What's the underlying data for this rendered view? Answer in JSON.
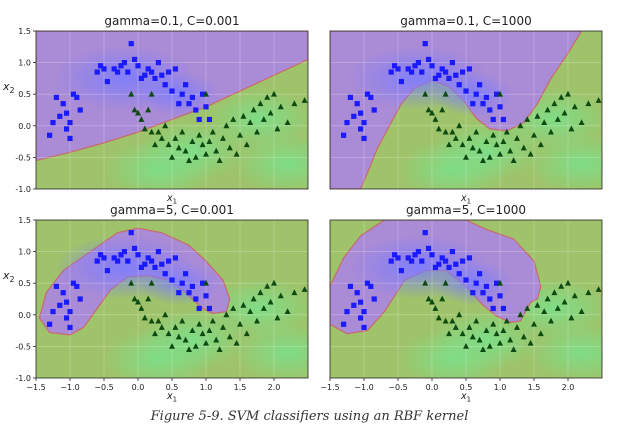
{
  "figure": {
    "caption": "Figure 5-9. SVM classifiers using an RBF kernel"
  },
  "colors": {
    "class0_region": "#a98bd6",
    "class1_region": "#9fc36a",
    "class0_marker": "#1a1aff",
    "class1_marker": "#0d4a12",
    "boundary": "#c86a6a"
  },
  "chart_data": [
    {
      "type": "scatter",
      "title": "gamma=0.1, C=0.001",
      "xlabel": "x1",
      "ylabel": "x2",
      "xlim": [
        -1.5,
        2.5
      ],
      "ylim": [
        -1.0,
        1.5
      ],
      "xticks": [],
      "yticks": [
        "-1.0",
        "-0.5",
        "0.0",
        "0.5",
        "1.0",
        "1.5"
      ],
      "grid": true,
      "boundary": [
        [
          -1.5,
          -0.55
        ],
        [
          -1.0,
          -0.42
        ],
        [
          -0.5,
          -0.27
        ],
        [
          0.0,
          -0.1
        ],
        [
          0.5,
          0.1
        ],
        [
          1.0,
          0.3
        ],
        [
          1.5,
          0.55
        ],
        [
          2.0,
          0.8
        ],
        [
          2.5,
          1.05
        ]
      ]
    },
    {
      "type": "scatter",
      "title": "gamma=0.1, C=1000",
      "xlabel": "x1",
      "ylabel": "",
      "xlim": [
        -1.5,
        2.5
      ],
      "ylim": [
        -1.0,
        1.5
      ],
      "xticks": [],
      "yticks": [],
      "grid": true,
      "boundary": [
        [
          -1.05,
          -1.0
        ],
        [
          -0.95,
          -0.75
        ],
        [
          -0.8,
          -0.35
        ],
        [
          -0.6,
          0.05
        ],
        [
          -0.45,
          0.35
        ],
        [
          -0.25,
          0.6
        ],
        [
          0.0,
          0.72
        ],
        [
          0.25,
          0.62
        ],
        [
          0.45,
          0.42
        ],
        [
          0.65,
          0.12
        ],
        [
          0.85,
          -0.05
        ],
        [
          1.1,
          -0.08
        ],
        [
          1.35,
          0.05
        ],
        [
          1.55,
          0.35
        ],
        [
          1.75,
          0.75
        ],
        [
          2.0,
          1.15
        ],
        [
          2.2,
          1.5
        ]
      ]
    },
    {
      "type": "scatter",
      "title": "gamma=5, C=0.001",
      "xlabel": "x1",
      "ylabel": "x2",
      "xlim": [
        -1.5,
        2.5
      ],
      "ylim": [
        -1.0,
        1.5
      ],
      "xticks": [
        "-1.5",
        "-1.0",
        "-0.5",
        "0.0",
        "0.5",
        "1.0",
        "1.5",
        "2.0"
      ],
      "yticks": [
        "-1.0",
        "-0.5",
        "0.0",
        "0.5",
        "1.0",
        "1.5"
      ],
      "grid": true,
      "boundary": [
        [
          -1.45,
          -0.05
        ],
        [
          -1.35,
          0.35
        ],
        [
          -1.1,
          0.7
        ],
        [
          -0.7,
          1.0
        ],
        [
          -0.3,
          1.3
        ],
        [
          0.0,
          1.37
        ],
        [
          0.35,
          1.3
        ],
        [
          0.75,
          1.1
        ],
        [
          1.0,
          0.85
        ],
        [
          1.25,
          0.55
        ],
        [
          1.35,
          0.25
        ],
        [
          1.3,
          0.05
        ],
        [
          1.1,
          0.02
        ],
        [
          0.95,
          0.1
        ],
        [
          0.7,
          0.35
        ],
        [
          0.45,
          0.55
        ],
        [
          0.15,
          0.62
        ],
        [
          -0.15,
          0.6
        ],
        [
          -0.4,
          0.4
        ],
        [
          -0.6,
          0.1
        ],
        [
          -0.8,
          -0.2
        ],
        [
          -1.0,
          -0.32
        ],
        [
          -1.3,
          -0.28
        ],
        [
          -1.45,
          -0.05
        ]
      ]
    },
    {
      "type": "scatter",
      "title": "gamma=5, C=1000",
      "xlabel": "x1",
      "ylabel": "",
      "xlim": [
        -1.5,
        2.5
      ],
      "ylim": [
        -1.0,
        1.5
      ],
      "xticks": [
        "-1.5",
        "-1.0",
        "-0.5",
        "0.0",
        "0.5",
        "1.0",
        "1.5",
        "2.0"
      ],
      "yticks": [],
      "grid": true,
      "boundary": [
        [
          -1.5,
          0.45
        ],
        [
          -1.3,
          0.9
        ],
        [
          -1.05,
          1.25
        ],
        [
          -0.7,
          1.5
        ],
        [
          0.5,
          1.5
        ],
        [
          0.8,
          1.35
        ],
        [
          1.2,
          1.2
        ],
        [
          1.5,
          0.85
        ],
        [
          1.6,
          0.45
        ],
        [
          1.55,
          0.25
        ],
        [
          1.45,
          0.2
        ],
        [
          1.3,
          -0.1
        ],
        [
          1.15,
          -0.12
        ],
        [
          0.95,
          -0.02
        ],
        [
          0.75,
          0.15
        ],
        [
          0.5,
          0.45
        ],
        [
          0.2,
          0.7
        ],
        [
          -0.1,
          0.7
        ],
        [
          -0.4,
          0.55
        ],
        [
          -0.55,
          0.3
        ],
        [
          -0.7,
          0.05
        ],
        [
          -0.95,
          -0.25
        ],
        [
          -1.25,
          -0.3
        ],
        [
          -1.5,
          -0.15
        ]
      ]
    }
  ],
  "points": {
    "class0": [
      [
        -1.25,
        0.05
      ],
      [
        -1.1,
        0.35
      ],
      [
        -1.05,
        0.2
      ],
      [
        -1.0,
        0.05
      ],
      [
        -0.95,
        0.5
      ],
      [
        -0.9,
        0.45
      ],
      [
        -0.85,
        0.25
      ],
      [
        -1.2,
        0.45
      ],
      [
        -1.15,
        0.15
      ],
      [
        -1.05,
        -0.05
      ],
      [
        -0.6,
        0.85
      ],
      [
        -0.55,
        0.95
      ],
      [
        -0.5,
        0.9
      ],
      [
        -0.45,
        0.7
      ],
      [
        -0.35,
        0.9
      ],
      [
        -0.3,
        0.85
      ],
      [
        -0.25,
        0.95
      ],
      [
        -0.2,
        1.0
      ],
      [
        -0.15,
        0.85
      ],
      [
        -0.1,
        1.3
      ],
      [
        -0.05,
        1.05
      ],
      [
        0.0,
        0.95
      ],
      [
        0.05,
        0.75
      ],
      [
        0.1,
        0.8
      ],
      [
        0.15,
        0.9
      ],
      [
        0.2,
        0.85
      ],
      [
        0.25,
        0.75
      ],
      [
        0.3,
        1.0
      ],
      [
        0.35,
        0.8
      ],
      [
        0.4,
        0.65
      ],
      [
        0.45,
        0.85
      ],
      [
        0.5,
        0.55
      ],
      [
        0.55,
        0.9
      ],
      [
        0.6,
        0.35
      ],
      [
        0.65,
        0.5
      ],
      [
        0.7,
        0.65
      ],
      [
        0.75,
        0.35
      ],
      [
        0.8,
        0.45
      ],
      [
        0.85,
        0.25
      ],
      [
        0.9,
        0.1
      ],
      [
        0.95,
        0.5
      ],
      [
        1.0,
        0.3
      ],
      [
        1.05,
        0.1
      ],
      [
        -1.3,
        -0.15
      ],
      [
        -1.0,
        -0.2
      ]
    ],
    "class1": [
      [
        -0.1,
        0.5
      ],
      [
        -0.05,
        0.25
      ],
      [
        0.0,
        0.2
      ],
      [
        0.05,
        0.1
      ],
      [
        0.1,
        -0.05
      ],
      [
        0.15,
        0.25
      ],
      [
        0.2,
        -0.1
      ],
      [
        0.25,
        -0.3
      ],
      [
        0.3,
        -0.1
      ],
      [
        0.35,
        -0.2
      ],
      [
        0.4,
        0.0
      ],
      [
        0.45,
        -0.3
      ],
      [
        0.5,
        -0.5
      ],
      [
        0.55,
        -0.2
      ],
      [
        0.6,
        -0.35
      ],
      [
        0.65,
        -0.1
      ],
      [
        0.7,
        -0.4
      ],
      [
        0.75,
        -0.55
      ],
      [
        0.8,
        -0.25
      ],
      [
        0.85,
        -0.5
      ],
      [
        0.9,
        -0.15
      ],
      [
        0.95,
        -0.3
      ],
      [
        1.0,
        -0.45
      ],
      [
        1.05,
        -0.25
      ],
      [
        1.1,
        -0.1
      ],
      [
        1.15,
        -0.4
      ],
      [
        1.2,
        -0.55
      ],
      [
        1.25,
        -0.2
      ],
      [
        1.3,
        0.0
      ],
      [
        1.35,
        -0.35
      ],
      [
        1.4,
        0.1
      ],
      [
        1.45,
        -0.45
      ],
      [
        1.5,
        -0.15
      ],
      [
        1.55,
        0.15
      ],
      [
        1.6,
        -0.3
      ],
      [
        1.65,
        0.05
      ],
      [
        1.7,
        0.25
      ],
      [
        1.75,
        -0.1
      ],
      [
        1.8,
        0.35
      ],
      [
        1.85,
        0.1
      ],
      [
        1.9,
        0.45
      ],
      [
        1.95,
        0.2
      ],
      [
        2.0,
        0.5
      ],
      [
        2.05,
        -0.05
      ],
      [
        2.1,
        0.3
      ],
      [
        2.2,
        0.05
      ],
      [
        2.3,
        0.35
      ],
      [
        2.45,
        0.4
      ],
      [
        1.0,
        0.5
      ],
      [
        0.2,
        0.5
      ]
    ]
  }
}
